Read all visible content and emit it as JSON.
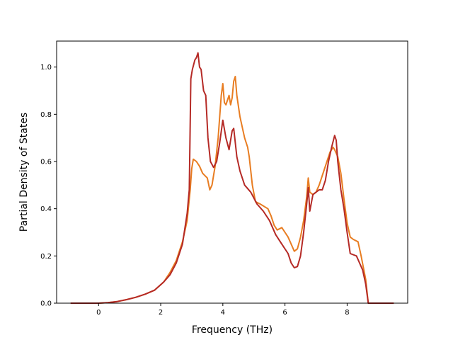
{
  "chart_data": {
    "type": "line",
    "title": "",
    "xlabel": "Frequency (THz)",
    "ylabel": "Partial Density of States",
    "xlim": [
      -1.35,
      9.95
    ],
    "ylim": [
      0.0,
      1.11
    ],
    "xticks": [
      0,
      2,
      4,
      6,
      8
    ],
    "xtick_labels": [
      "0",
      "2",
      "4",
      "6",
      "8"
    ],
    "yticks": [
      0.0,
      0.2,
      0.4,
      0.6,
      0.8,
      1.0
    ],
    "ytick_labels": [
      "0.0",
      "0.2",
      "0.4",
      "0.6",
      "0.8",
      "1.0"
    ],
    "grid": false,
    "legend": "none",
    "series": [
      {
        "color": "#e87d22",
        "points": [
          [
            -0.9,
            0
          ],
          [
            0,
            0
          ],
          [
            0.3,
            0.002
          ],
          [
            0.6,
            0.007
          ],
          [
            0.9,
            0.015
          ],
          [
            1.2,
            0.025
          ],
          [
            1.5,
            0.038
          ],
          [
            1.8,
            0.055
          ],
          [
            2.1,
            0.09
          ],
          [
            2.3,
            0.13
          ],
          [
            2.5,
            0.18
          ],
          [
            2.7,
            0.26
          ],
          [
            2.85,
            0.35
          ],
          [
            2.95,
            0.48
          ],
          [
            3.0,
            0.57
          ],
          [
            3.05,
            0.61
          ],
          [
            3.15,
            0.6
          ],
          [
            3.25,
            0.58
          ],
          [
            3.35,
            0.55
          ],
          [
            3.5,
            0.53
          ],
          [
            3.58,
            0.48
          ],
          [
            3.65,
            0.5
          ],
          [
            3.75,
            0.58
          ],
          [
            3.85,
            0.7
          ],
          [
            3.95,
            0.88
          ],
          [
            4.0,
            0.93
          ],
          [
            4.05,
            0.85
          ],
          [
            4.1,
            0.84
          ],
          [
            4.2,
            0.88
          ],
          [
            4.25,
            0.84
          ],
          [
            4.3,
            0.87
          ],
          [
            4.35,
            0.94
          ],
          [
            4.4,
            0.96
          ],
          [
            4.45,
            0.88
          ],
          [
            4.55,
            0.79
          ],
          [
            4.7,
            0.7
          ],
          [
            4.8,
            0.66
          ],
          [
            4.85,
            0.62
          ],
          [
            4.95,
            0.5
          ],
          [
            5.05,
            0.43
          ],
          [
            5.2,
            0.42
          ],
          [
            5.45,
            0.4
          ],
          [
            5.55,
            0.37
          ],
          [
            5.65,
            0.33
          ],
          [
            5.75,
            0.31
          ],
          [
            5.9,
            0.32
          ],
          [
            6.0,
            0.3
          ],
          [
            6.1,
            0.28
          ],
          [
            6.2,
            0.25
          ],
          [
            6.3,
            0.22
          ],
          [
            6.4,
            0.23
          ],
          [
            6.5,
            0.28
          ],
          [
            6.6,
            0.35
          ],
          [
            6.7,
            0.45
          ],
          [
            6.75,
            0.53
          ],
          [
            6.8,
            0.47
          ],
          [
            6.9,
            0.46
          ],
          [
            7.0,
            0.47
          ],
          [
            7.1,
            0.5
          ],
          [
            7.2,
            0.54
          ],
          [
            7.35,
            0.6
          ],
          [
            7.45,
            0.64
          ],
          [
            7.55,
            0.66
          ],
          [
            7.6,
            0.65
          ],
          [
            7.7,
            0.62
          ],
          [
            7.8,
            0.55
          ],
          [
            7.9,
            0.44
          ],
          [
            8.0,
            0.34
          ],
          [
            8.1,
            0.28
          ],
          [
            8.2,
            0.27
          ],
          [
            8.35,
            0.26
          ],
          [
            8.45,
            0.2
          ],
          [
            8.6,
            0.1
          ],
          [
            8.68,
            0
          ],
          [
            9.5,
            0
          ]
        ]
      },
      {
        "color": "#b52a26",
        "points": [
          [
            -0.9,
            0
          ],
          [
            0,
            0
          ],
          [
            0.3,
            0.002
          ],
          [
            0.6,
            0.007
          ],
          [
            0.9,
            0.015
          ],
          [
            1.2,
            0.025
          ],
          [
            1.5,
            0.038
          ],
          [
            1.8,
            0.055
          ],
          [
            2.1,
            0.09
          ],
          [
            2.3,
            0.12
          ],
          [
            2.5,
            0.17
          ],
          [
            2.7,
            0.25
          ],
          [
            2.85,
            0.38
          ],
          [
            2.92,
            0.48
          ],
          [
            2.97,
            0.95
          ],
          [
            3.02,
            0.99
          ],
          [
            3.1,
            1.03
          ],
          [
            3.15,
            1.04
          ],
          [
            3.2,
            1.06
          ],
          [
            3.25,
            1.0
          ],
          [
            3.3,
            0.99
          ],
          [
            3.38,
            0.9
          ],
          [
            3.45,
            0.88
          ],
          [
            3.52,
            0.7
          ],
          [
            3.6,
            0.6
          ],
          [
            3.7,
            0.575
          ],
          [
            3.8,
            0.6
          ],
          [
            3.9,
            0.68
          ],
          [
            4.0,
            0.775
          ],
          [
            4.1,
            0.7
          ],
          [
            4.2,
            0.65
          ],
          [
            4.3,
            0.73
          ],
          [
            4.35,
            0.74
          ],
          [
            4.45,
            0.62
          ],
          [
            4.55,
            0.56
          ],
          [
            4.7,
            0.5
          ],
          [
            4.9,
            0.47
          ],
          [
            5.1,
            0.42
          ],
          [
            5.3,
            0.39
          ],
          [
            5.5,
            0.35
          ],
          [
            5.7,
            0.29
          ],
          [
            5.9,
            0.25
          ],
          [
            6.1,
            0.21
          ],
          [
            6.2,
            0.17
          ],
          [
            6.3,
            0.15
          ],
          [
            6.4,
            0.155
          ],
          [
            6.5,
            0.2
          ],
          [
            6.6,
            0.3
          ],
          [
            6.7,
            0.42
          ],
          [
            6.75,
            0.49
          ],
          [
            6.8,
            0.39
          ],
          [
            6.9,
            0.46
          ],
          [
            7.1,
            0.48
          ],
          [
            7.2,
            0.48
          ],
          [
            7.3,
            0.52
          ],
          [
            7.4,
            0.6
          ],
          [
            7.5,
            0.66
          ],
          [
            7.6,
            0.71
          ],
          [
            7.65,
            0.69
          ],
          [
            7.7,
            0.6
          ],
          [
            7.8,
            0.48
          ],
          [
            7.9,
            0.4
          ],
          [
            8.0,
            0.3
          ],
          [
            8.1,
            0.21
          ],
          [
            8.3,
            0.2
          ],
          [
            8.5,
            0.14
          ],
          [
            8.6,
            0.08
          ],
          [
            8.68,
            0
          ],
          [
            9.5,
            0
          ]
        ]
      }
    ]
  }
}
